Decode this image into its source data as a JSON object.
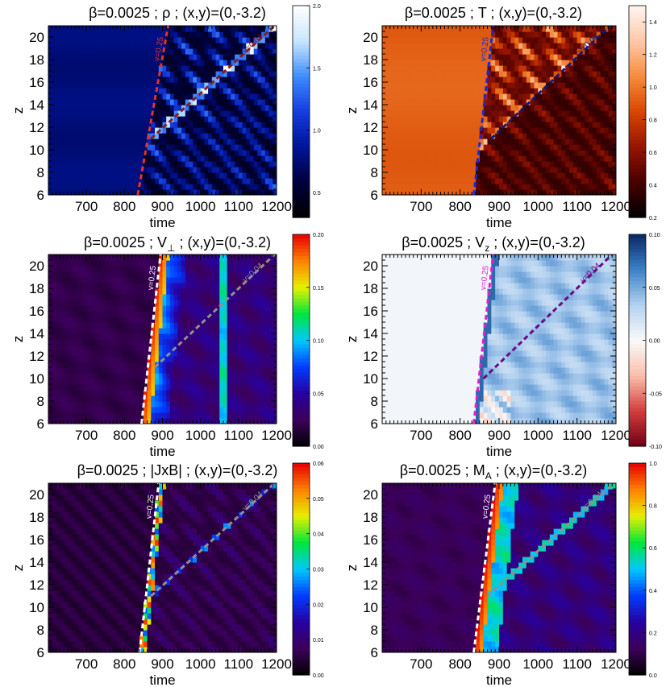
{
  "chart_data": [
    {
      "type": "heatmap",
      "quantity": "rho",
      "title_lead": "β=0.0025 ; ",
      "title_symbol": "ρ",
      "title_sub": "",
      "title_tail": " ; (x,y)=(0,-3.2)",
      "xlabel": "time",
      "ylabel": "z",
      "xlim": [
        600,
        1200
      ],
      "ylim": [
        6,
        21
      ],
      "xticks": [
        700,
        800,
        900,
        1000,
        1100,
        1200
      ],
      "yticks": [
        6,
        8,
        10,
        12,
        14,
        16,
        18,
        20
      ],
      "colorbar": {
        "range": [
          0.3,
          2.0
        ],
        "ticks": [
          "2.0",
          "1.5",
          "1.0",
          "0.5"
        ],
        "tick_values": [
          2.0,
          1.5,
          1.0,
          0.5
        ],
        "colormap": "blue"
      },
      "annotations": [
        {
          "label": "v=0.25",
          "color": "#e53030",
          "from": [
            835,
            6
          ],
          "to": [
            915,
            21
          ]
        },
        {
          "label": "v=0.04",
          "color": "#8b1a1a",
          "from": [
            870,
            11
          ],
          "to": [
            1195,
            21
          ]
        }
      ]
    },
    {
      "type": "heatmap",
      "quantity": "T",
      "title_lead": "β=0.0025 ; ",
      "title_symbol": "T",
      "title_sub": "",
      "title_tail": " ; (x,y)=(0,-3.2)",
      "xlabel": "time",
      "ylabel": "z",
      "xlim": [
        600,
        1200
      ],
      "ylim": [
        6,
        21
      ],
      "xticks": [
        700,
        800,
        900,
        1000,
        1100,
        1200
      ],
      "yticks": [
        6,
        8,
        10,
        12,
        14,
        16,
        18,
        20
      ],
      "colorbar": {
        "range": [
          0.2,
          1.5
        ],
        "ticks": [
          "1.4",
          "1.2",
          "1.0",
          "0.8",
          "0.6",
          "0.4",
          "0.2"
        ],
        "tick_values": [
          1.4,
          1.2,
          1.0,
          0.8,
          0.6,
          0.4,
          0.2
        ],
        "colormap": "hot"
      },
      "annotations": [
        {
          "label": "v=0.25",
          "color": "#1a2ad0",
          "from": [
            835,
            6
          ],
          "to": [
            885,
            21
          ]
        },
        {
          "label": "v=0.04",
          "color": "#0a1a80",
          "from": [
            880,
            11
          ],
          "to": [
            1185,
            21
          ]
        }
      ]
    },
    {
      "type": "heatmap",
      "quantity": "V_perp",
      "title_lead": "β=0.0025 ; ",
      "title_symbol": "V",
      "title_sub": "⊥",
      "title_tail": " ; (x,y)=(0,-3.2)",
      "xlabel": "time",
      "ylabel": "z",
      "xlim": [
        600,
        1200
      ],
      "ylim": [
        6,
        21
      ],
      "xticks": [
        700,
        800,
        900,
        1000,
        1100,
        1200
      ],
      "yticks": [
        6,
        8,
        10,
        12,
        14,
        16,
        18,
        20
      ],
      "colorbar": {
        "range": [
          0.0,
          0.2
        ],
        "ticks": [
          "0.20",
          "0.15",
          "0.10",
          "0.05",
          "0.00"
        ],
        "tick_values": [
          0.2,
          0.15,
          0.1,
          0.05,
          0.0
        ],
        "colormap": "rainbow"
      },
      "annotations": [
        {
          "label": "v=0.25",
          "color": "#ffffff",
          "from": [
            845,
            6
          ],
          "to": [
            895,
            21
          ]
        },
        {
          "label": "v=0.04",
          "color": "#909090",
          "from": [
            880,
            11
          ],
          "to": [
            1195,
            21
          ]
        }
      ]
    },
    {
      "type": "heatmap",
      "quantity": "V_z",
      "title_lead": "β=0.0025 ; ",
      "title_symbol": "V",
      "title_sub": "z",
      "title_tail": " ; (x,y)=(0,-3.2)",
      "xlabel": "time",
      "ylabel": "z",
      "xlim": [
        600,
        1200
      ],
      "ylim": [
        6,
        21
      ],
      "xticks": [
        700,
        800,
        900,
        1000,
        1100,
        1200
      ],
      "yticks": [
        6,
        8,
        10,
        12,
        14,
        16,
        18,
        20
      ],
      "colorbar": {
        "range": [
          -0.1,
          0.1
        ],
        "ticks": [
          "0.10",
          "0.05",
          "0.00",
          "-0.05",
          "-0.10"
        ],
        "tick_values": [
          0.1,
          0.05,
          0.0,
          -0.05,
          -0.1
        ],
        "colormap": "diverging"
      },
      "annotations": [
        {
          "label": "v=0.25",
          "color": "#e020d0",
          "from": [
            835,
            6
          ],
          "to": [
            885,
            21
          ]
        },
        {
          "label": "v=0.04",
          "color": "#6a0a80",
          "from": [
            860,
            10
          ],
          "to": [
            1190,
            21
          ]
        }
      ]
    },
    {
      "type": "heatmap",
      "quantity": "JxB",
      "title_lead": "β=0.0025 ; ",
      "title_symbol": "|JxB|",
      "title_sub": "",
      "title_tail": " ; (x,y)=(0,-3.2)",
      "xlabel": "time",
      "ylabel": "z",
      "xlim": [
        600,
        1200
      ],
      "ylim": [
        6,
        21
      ],
      "xticks": [
        700,
        800,
        900,
        1000,
        1100,
        1200
      ],
      "yticks": [
        6,
        8,
        10,
        12,
        14,
        16,
        18,
        20
      ],
      "colorbar": {
        "range": [
          0.0,
          0.06
        ],
        "ticks": [
          "0.06",
          "0.05",
          "0.04",
          "0.03",
          "0.02",
          "0.01",
          "0.00"
        ],
        "tick_values": [
          0.06,
          0.05,
          0.04,
          0.03,
          0.02,
          0.01,
          0.0
        ],
        "colormap": "rainbow"
      },
      "annotations": [
        {
          "label": "v=0.25",
          "color": "#ffffff",
          "from": [
            840,
            6
          ],
          "to": [
            890,
            21
          ]
        },
        {
          "label": "v=0.04",
          "color": "#909090",
          "from": [
            870,
            11
          ],
          "to": [
            1195,
            21
          ]
        }
      ]
    },
    {
      "type": "heatmap",
      "quantity": "M_A",
      "title_lead": "β=0.0025 ; ",
      "title_symbol": "M",
      "title_sub": "A",
      "title_tail": " ; (x,y)=(0,-3.2)",
      "xlabel": "time",
      "ylabel": "z",
      "xlim": [
        600,
        1200
      ],
      "ylim": [
        6,
        21
      ],
      "xticks": [
        700,
        800,
        900,
        1000,
        1100,
        1200
      ],
      "yticks": [
        6,
        8,
        10,
        12,
        14,
        16,
        18,
        20
      ],
      "colorbar": {
        "range": [
          0.0,
          1.0
        ],
        "ticks": [
          "1.0",
          "0.8",
          "0.6",
          "0.4",
          "0.2",
          "0.0"
        ],
        "tick_values": [
          1.0,
          0.8,
          0.6,
          0.4,
          0.2,
          0.0
        ],
        "colormap": "rainbow"
      },
      "annotations": [
        {
          "label": "v=0.25",
          "color": "#ffffff",
          "from": [
            835,
            6
          ],
          "to": [
            890,
            21
          ]
        },
        {
          "label": "v=0.04",
          "color": "#909090",
          "from": [
            870,
            11
          ],
          "to": [
            1195,
            21
          ]
        }
      ]
    }
  ]
}
